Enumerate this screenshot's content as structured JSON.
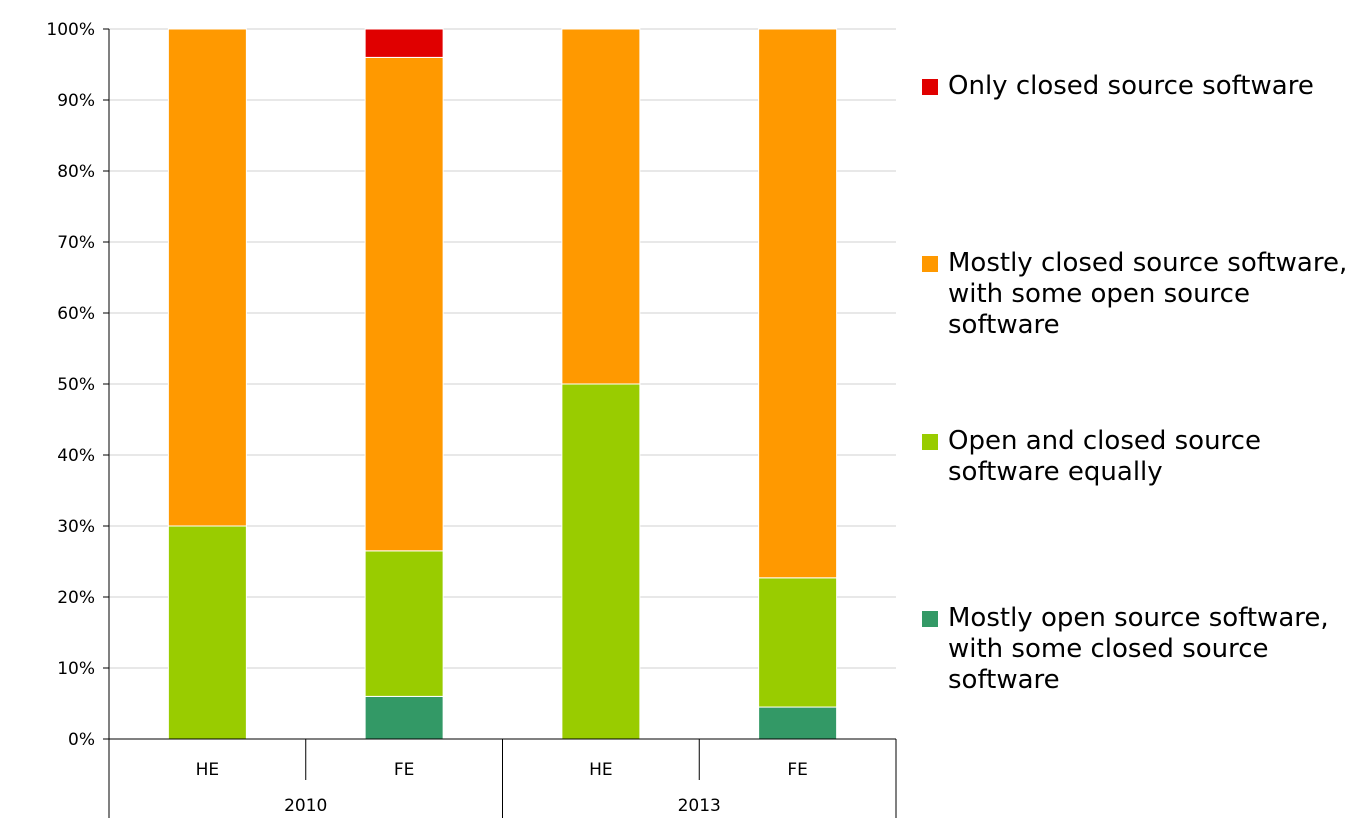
{
  "chart_data": {
    "type": "bar",
    "stacked": true,
    "percent": true,
    "categories": [
      "HE",
      "FE",
      "HE",
      "FE"
    ],
    "groups": [
      {
        "label": "2010",
        "categories": [
          "HE",
          "FE"
        ]
      },
      {
        "label": "2013",
        "categories": [
          "HE",
          "FE"
        ]
      }
    ],
    "series": [
      {
        "name": "Mostly open source software, with some closed source software",
        "color": "#339966",
        "values": [
          0,
          6,
          0,
          4.5
        ]
      },
      {
        "name": "Open and closed source software equally",
        "color": "#99cc00",
        "values": [
          30,
          20.5,
          50,
          18.2
        ]
      },
      {
        "name": "Mostly closed source software, with some open source software",
        "color": "#ff9900",
        "values": [
          70,
          69.5,
          50,
          77.3
        ]
      },
      {
        "name": "Only closed source software",
        "color": "#e00000",
        "values": [
          0,
          4,
          0,
          0
        ]
      }
    ],
    "yticks": [
      "0%",
      "10%",
      "20%",
      "30%",
      "40%",
      "50%",
      "60%",
      "70%",
      "80%",
      "90%",
      "100%"
    ],
    "ylim": [
      0,
      100
    ],
    "grid": true,
    "legend_position": "right"
  },
  "legend": [
    {
      "color": "#e00000",
      "label": "Only closed source software"
    },
    {
      "color": "#ff9900",
      "label": "Mostly closed source software, with some open source software"
    },
    {
      "color": "#99cc00",
      "label": "Open and closed source software equally"
    },
    {
      "color": "#339966",
      "label": "Mostly open source software, with some closed source software"
    }
  ]
}
